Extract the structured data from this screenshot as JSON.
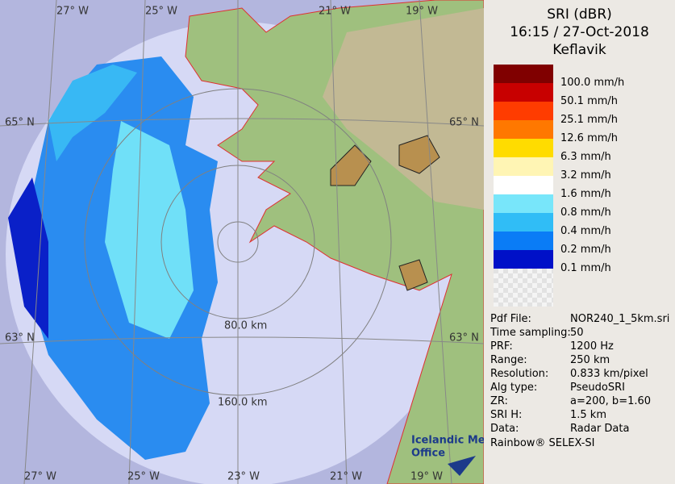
{
  "header": {
    "lines": [
      "SRI (dBR)",
      "16:15 / 27-Oct-2018",
      "Keflavik"
    ]
  },
  "legend": {
    "colors": [
      "#800000",
      "#c80000",
      "#ff3c00",
      "#ff7800",
      "#ffdc00",
      "#fff5b4",
      "#ffffff",
      "#78e6fa",
      "#30bdf6",
      "#0a7cf6",
      "#0010c8"
    ],
    "labels": [
      "100.0 mm/h",
      "50.1 mm/h",
      "25.1 mm/h",
      "12.6 mm/h",
      "6.3 mm/h",
      "3.2 mm/h",
      "1.6 mm/h",
      "0.8 mm/h",
      "0.4 mm/h",
      "0.2 mm/h",
      "0.1 mm/h"
    ]
  },
  "info": {
    "rows": [
      [
        "Pdf File:",
        "NOR240_1_5km.sri"
      ],
      [
        "Time sampling:",
        "50"
      ],
      [
        "PRF:",
        "1200 Hz"
      ],
      [
        "Range:",
        "250 km"
      ],
      [
        "Resolution:",
        "0.833 km/pixel"
      ],
      [
        "Alg type:",
        "PseudoSRI"
      ],
      [
        "ZR:",
        "a=200, b=1.60"
      ],
      [
        "SRI H:",
        "1.5 km"
      ],
      [
        "Data:",
        "Radar Data"
      ]
    ]
  },
  "footer": "Rainbow® SELEX-SI",
  "map": {
    "lon_labels_top": [
      "27° W",
      "25° W",
      "21° W",
      "19° W"
    ],
    "lon_labels_bottom": [
      "27° W",
      "25° W",
      "23° W",
      "21° W",
      "19° W"
    ],
    "lat_labels_left": [
      "65° N",
      "63° N"
    ],
    "lat_labels_right": [
      "65° N",
      "63° N"
    ],
    "range_labels": [
      "80.0 km",
      "160.0 km"
    ],
    "logo": [
      "Icelandic Met",
      "Office"
    ]
  }
}
